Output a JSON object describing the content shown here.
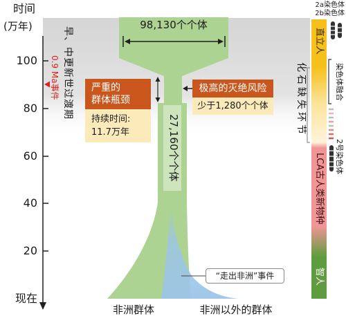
{
  "axis": {
    "title": "时间",
    "unit": "(万年)",
    "ticks": [
      "100",
      "80",
      "60",
      "40",
      "20",
      "现在"
    ]
  },
  "transition": {
    "label": "早、中更新世过渡期",
    "event": "0.9 Ma事件"
  },
  "population": {
    "ancestral_size": "98,130个个体",
    "bottleneck_size": "27,160个个体"
  },
  "bottleneck_box": {
    "title": [
      "严重的",
      "群体瓶颈"
    ],
    "duration": [
      "持续时间:",
      "11.7万年"
    ]
  },
  "risk_box": {
    "title": "极高的灭绝风险",
    "detail": "少于1,280个个体"
  },
  "out_of_africa_label": "“走出非洲”事件",
  "groups": {
    "africa": "非洲群体",
    "non_africa": "非洲以外的群体"
  },
  "lineage": {
    "erectus": "直立人",
    "missing_link": "化石缺失环节",
    "lca": "LCA古人类新物种",
    "sapiens": "智人"
  },
  "chromosomes": {
    "c2a": "2a染色体",
    "c2b": "2b染色体",
    "fusion": "染色体融合",
    "c2": "2号染色体"
  },
  "colors": {
    "population_green": "#acd391",
    "out_of_africa_blue": "#9cc5e8",
    "box_dark": "#c9561c",
    "box_light": "#fdeabb",
    "event_red": "#d7261e",
    "erectus_yellow": "#f5c01a",
    "lca_pink": "#f29596",
    "sapiens_green": "#5e9c3f"
  }
}
